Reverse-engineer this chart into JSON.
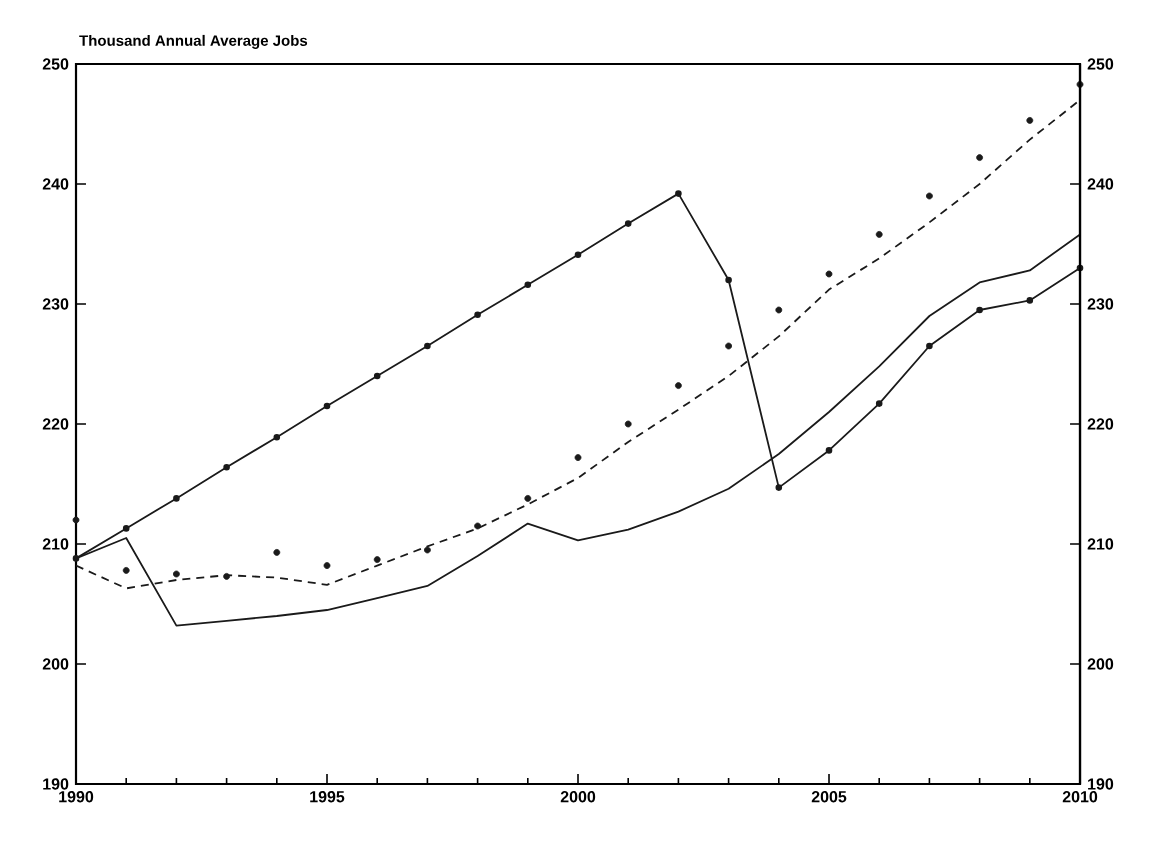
{
  "chart_data": {
    "type": "line",
    "ylabel": "Thousand Annual Average Jobs",
    "x": [
      1990,
      1991,
      1992,
      1993,
      1994,
      1995,
      1996,
      1997,
      1998,
      1999,
      2000,
      2001,
      2002,
      2003,
      2004,
      2005,
      2006,
      2007,
      2008,
      2009,
      2010
    ],
    "series": [
      {
        "color": "#1a1a1a",
        "marker": "circle",
        "line_style": "solid",
        "values": [
          208.8,
          211.3,
          213.8,
          216.4,
          218.9,
          221.5,
          224.0,
          226.5,
          229.1,
          231.6,
          234.1,
          236.7,
          239.2,
          232.0,
          214.7,
          217.8,
          221.7,
          226.5,
          229.5,
          230.3,
          233.0
        ]
      },
      {
        "color": "#1a1a1a",
        "marker": "none",
        "line_style": "solid",
        "values": [
          208.8,
          210.5,
          203.2,
          203.6,
          204.0,
          204.5,
          205.5,
          206.5,
          209.0,
          211.7,
          210.3,
          211.2,
          212.7,
          214.6,
          217.5,
          221.0,
          224.8,
          229.0,
          231.8,
          232.8,
          235.8
        ]
      },
      {
        "type": "scatter",
        "color": "#1a1a1a",
        "marker": "circle",
        "values": [
          212.0,
          207.8,
          207.5,
          207.3,
          209.3,
          208.2,
          208.7,
          209.5,
          211.5,
          213.8,
          217.2,
          220.0,
          223.2,
          226.5,
          229.5,
          232.5,
          235.8,
          239.0,
          242.2,
          245.3,
          248.3
        ]
      },
      {
        "color": "#1a1a1a",
        "marker": "none",
        "line_style": "dashed",
        "values": [
          208.2,
          206.3,
          207.0,
          207.4,
          207.2,
          206.6,
          208.2,
          209.8,
          211.3,
          213.3,
          215.5,
          218.5,
          221.2,
          224.0,
          227.3,
          231.2,
          233.8,
          236.8,
          240.0,
          243.7,
          247.0
        ]
      }
    ],
    "xlim": [
      1990,
      2010
    ],
    "xticks": [
      1990,
      1995,
      2000,
      2005,
      2010
    ],
    "ylim": [
      190,
      250
    ],
    "yticks": [
      190,
      200,
      210,
      220,
      230,
      240,
      250
    ],
    "y2lim": [
      190,
      250
    ],
    "y2ticks": [
      190,
      200,
      210,
      220,
      230,
      240,
      250
    ]
  }
}
